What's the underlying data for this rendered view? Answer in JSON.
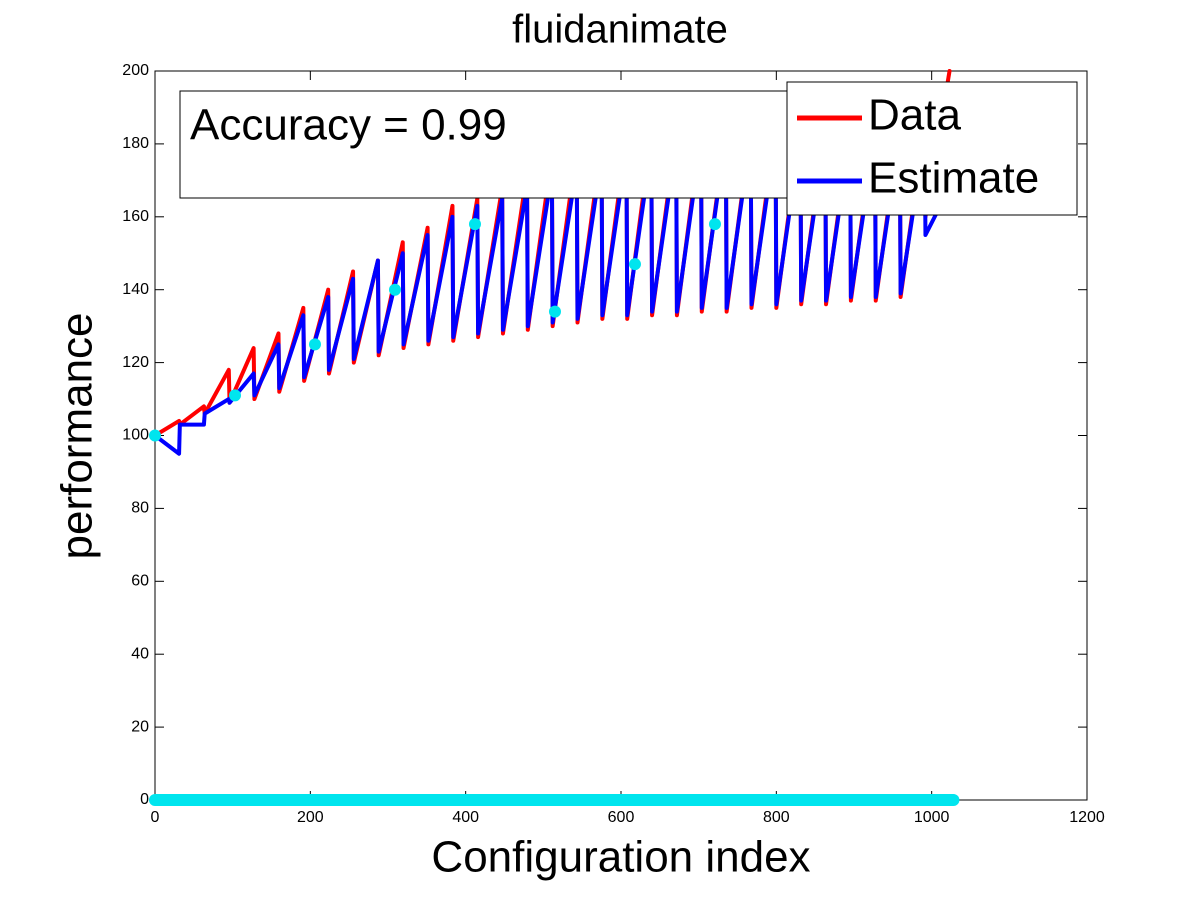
{
  "chart_data": {
    "type": "line",
    "title": "fluidanimate",
    "xlabel": "Configuration index",
    "ylabel": "performance",
    "annotation": "Accuracy = 0.99",
    "xlim": [
      0,
      1200
    ],
    "xticks": [
      0,
      200,
      400,
      600,
      800,
      1000,
      1200
    ],
    "ylim": [
      0,
      200
    ],
    "yticks": [
      0,
      20,
      40,
      60,
      80,
      100,
      120,
      140,
      160,
      180,
      200
    ],
    "legend": "top-right",
    "series": [
      {
        "name": "Data",
        "color": "#ff0000",
        "style": "line",
        "x": [
          0,
          31,
          32,
          63,
          64,
          95,
          96,
          127,
          128,
          159,
          160,
          191,
          192,
          223,
          224,
          255,
          256,
          287,
          288,
          319,
          320,
          351,
          352,
          383,
          384,
          415,
          416,
          447,
          448,
          479,
          480,
          511,
          512,
          543,
          544,
          575,
          576,
          607,
          608,
          639,
          640,
          671,
          672,
          703,
          704,
          735,
          736,
          767,
          768,
          799,
          800,
          831,
          832,
          863,
          864,
          895,
          896,
          927,
          928,
          959,
          960,
          991,
          992,
          1023
        ],
        "values": [
          100,
          104,
          103,
          108,
          106,
          118,
          109,
          124,
          110,
          128,
          112,
          135,
          115,
          140,
          117,
          145,
          120,
          148,
          122,
          153,
          124,
          157,
          125,
          163,
          126,
          165,
          127,
          168,
          128,
          172,
          129,
          177,
          130,
          179,
          131,
          180,
          132,
          182,
          132,
          183,
          133,
          183,
          133,
          184,
          134,
          184,
          134,
          184,
          135,
          185,
          135,
          185,
          136,
          185,
          136,
          185,
          137,
          185,
          137,
          185,
          138,
          185,
          160,
          200
        ]
      },
      {
        "name": "Estimate",
        "color": "#0000ff",
        "style": "line",
        "x": [
          0,
          31,
          32,
          63,
          64,
          95,
          96,
          127,
          128,
          159,
          160,
          191,
          192,
          223,
          224,
          255,
          256,
          287,
          288,
          319,
          320,
          351,
          352,
          383,
          384,
          415,
          416,
          447,
          448,
          479,
          480,
          511,
          512,
          543,
          544,
          575,
          576,
          607,
          608,
          639,
          640,
          671,
          672,
          703,
          704,
          735,
          736,
          767,
          768,
          799,
          800,
          831,
          832,
          863,
          864,
          895,
          896,
          927,
          928,
          959,
          960,
          991,
          992,
          1023
        ],
        "values": [
          100,
          95,
          103,
          103,
          106,
          110,
          109,
          117,
          111,
          125,
          113,
          133,
          116,
          138,
          118,
          143,
          121,
          148,
          123,
          150,
          125,
          155,
          126,
          160,
          127,
          163,
          128,
          165,
          129,
          168,
          130,
          172,
          131,
          174,
          132,
          176,
          133,
          178,
          133,
          179,
          134,
          180,
          134,
          181,
          135,
          182,
          135,
          182,
          136,
          182,
          136,
          182,
          137,
          182,
          137,
          182,
          138,
          182,
          138,
          182,
          139,
          182,
          155,
          168
        ]
      },
      {
        "color": "#00e5ee",
        "style": "markers",
        "x": [
          0,
          103,
          206,
          309,
          412,
          515,
          618,
          721
        ],
        "values": [
          100,
          111,
          125,
          140,
          158,
          134,
          147,
          158
        ]
      },
      {
        "color": "#00e5ee",
        "style": "thick",
        "x": [
          0,
          1028
        ],
        "values": [
          0,
          0
        ]
      }
    ]
  }
}
